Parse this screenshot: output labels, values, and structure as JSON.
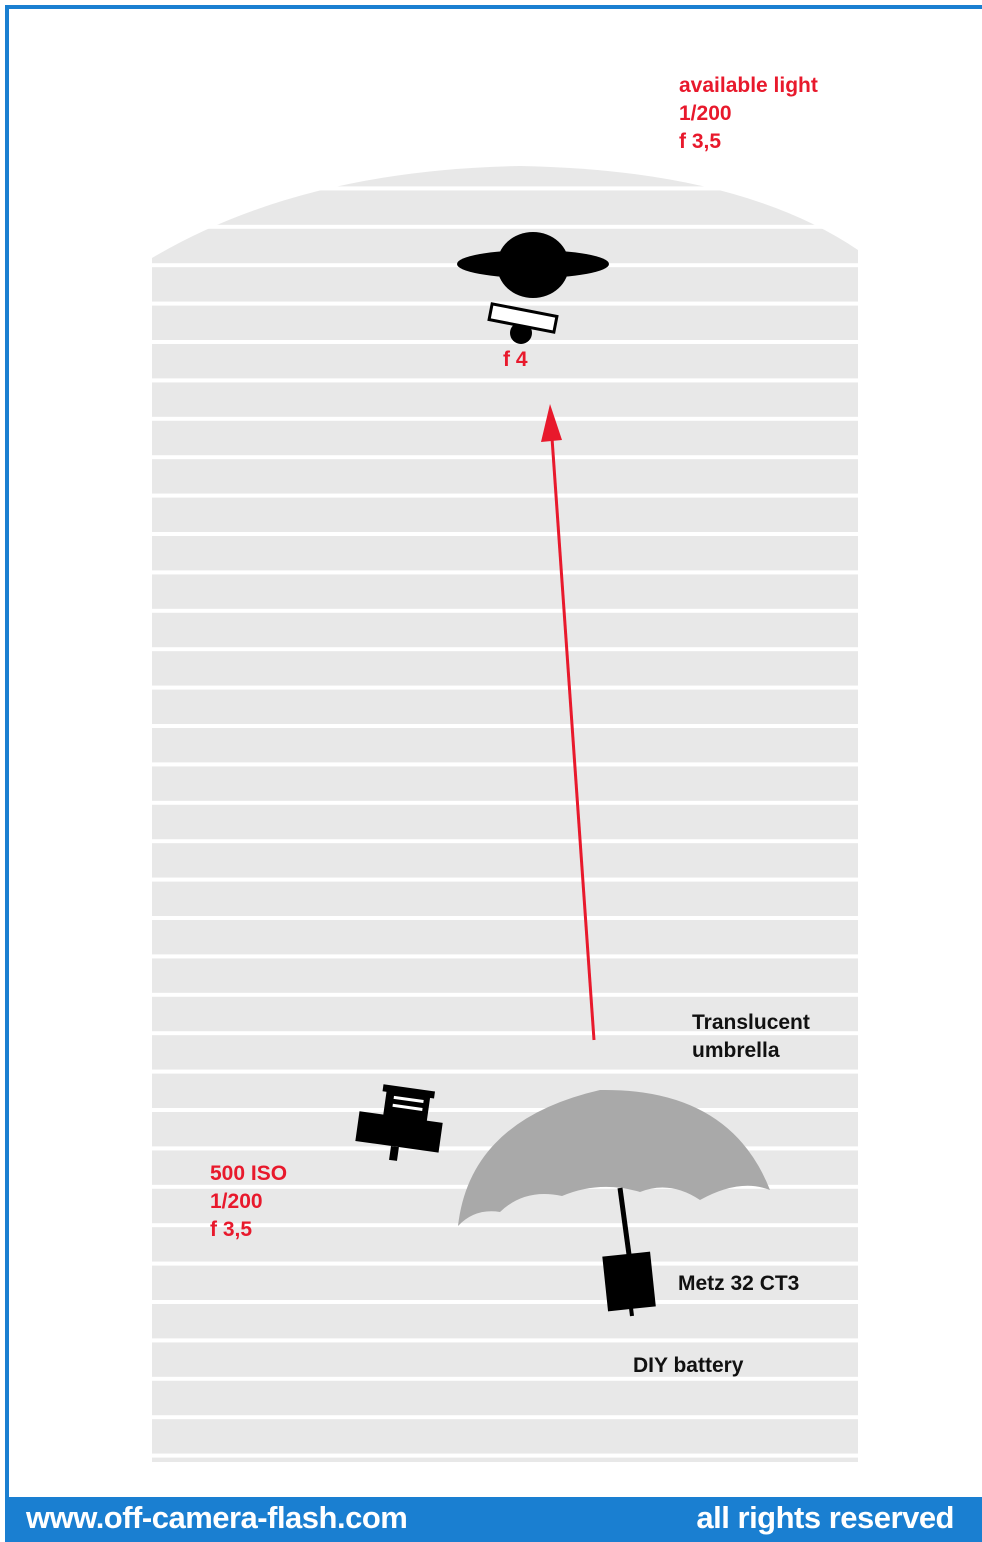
{
  "colors": {
    "accent_blue": "#1a7fd1",
    "red": "#e8192c",
    "floor_stripe": "#e8e8e8",
    "umbrella": "#a9a9a9"
  },
  "labels": {
    "ambient": [
      "available light",
      "1/200",
      "f 3,5"
    ],
    "subject_aperture": "f 4",
    "camera_settings": [
      "500 ISO",
      "1/200",
      "f 3,5"
    ],
    "umbrella": [
      "Translucent",
      "umbrella"
    ],
    "flash": "Metz 32 CT3",
    "battery": "DIY battery"
  },
  "footer": {
    "website": "www.off-camera-flash.com",
    "rights": "all rights reserved"
  },
  "icons": [
    "subject-icon",
    "light-meter-icon",
    "camera-icon",
    "umbrella-icon",
    "flash-icon",
    "light-arrow"
  ]
}
